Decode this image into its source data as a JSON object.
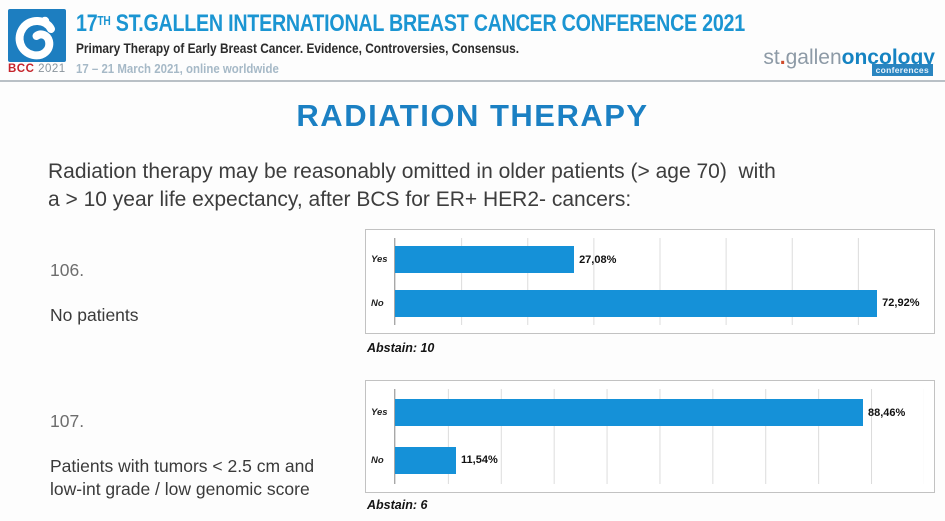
{
  "header": {
    "logo_bcc": "BCC",
    "logo_year": "2021",
    "title_num": "17",
    "title_sup": "TH",
    "title_rest": " ST.GALLEN INTERNATIONAL BREAST CANCER CONFERENCE 2021",
    "subtitle": "Primary Therapy of Early Breast Cancer. Evidence, Controversies, Consensus.",
    "dates": "17 – 21 March 2021, online worldwide",
    "brand_st": "st",
    "brand_dot": ".",
    "brand_gallen": "gallen",
    "brand_oncology": "oncology",
    "brand_tag": "conferences"
  },
  "main": {
    "title": "RADIATION THERAPY",
    "statement": "Radiation therapy may be reasonably omitted in older patients (> age 70)  with\na > 10 year life expectancy, after BCS for ER+ HER2- cancers:"
  },
  "questions": [
    {
      "number": "106.",
      "label": "No patients"
    },
    {
      "number": "107.",
      "label": "Patients with tumors < 2.5 cm and\nlow-int grade / low genomic score"
    }
  ],
  "colors": {
    "bar_blue": "#1591d8",
    "header_blue": "#1b95d2",
    "title_blue": "#1b80c3",
    "bcc_red": "#c5242b"
  },
  "chart_data": [
    {
      "type": "bar",
      "orientation": "horizontal",
      "title": "Question 106 vote result",
      "categories": [
        "Yes",
        "No"
      ],
      "values": [
        27.08,
        72.92
      ],
      "value_labels": [
        "27,08%",
        "72,92%"
      ],
      "xlim": [
        0,
        80
      ],
      "gridline_step": 10,
      "grid": true,
      "legend": false,
      "abstain": 10,
      "abstain_label": "Abstain: 10"
    },
    {
      "type": "bar",
      "orientation": "horizontal",
      "title": "Question 107 vote result",
      "categories": [
        "Yes",
        "No"
      ],
      "values": [
        88.46,
        11.54
      ],
      "value_labels": [
        "88,46%",
        "11,54%"
      ],
      "xlim": [
        0,
        100
      ],
      "gridline_step": 10,
      "grid": true,
      "legend": false,
      "abstain": 6,
      "abstain_label": "Abstain: 6"
    }
  ]
}
